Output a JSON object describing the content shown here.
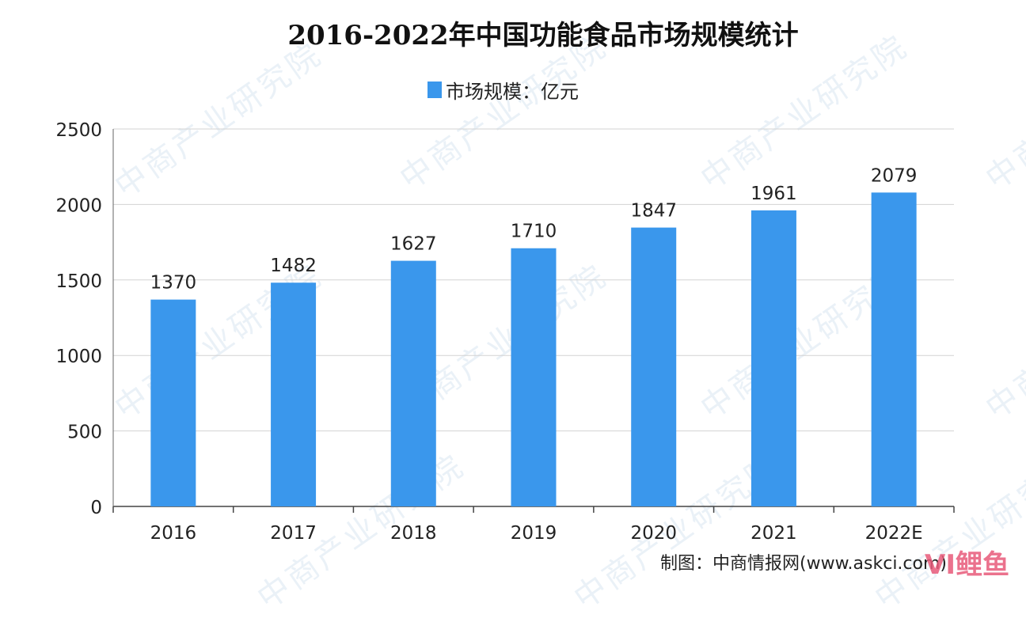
{
  "chart_data": {
    "type": "bar",
    "title": "2016-2022年中国功能食品市场规模统计",
    "categories": [
      "2016",
      "2017",
      "2018",
      "2019",
      "2020",
      "2021",
      "2022E"
    ],
    "series": [
      {
        "name": "市场规模：亿元",
        "values": [
          1370,
          1482,
          1627,
          1710,
          1847,
          1961,
          2079
        ]
      }
    ],
    "ylim": [
      0,
      2500
    ],
    "yticks": [
      0,
      500,
      1000,
      1500,
      2000,
      2500
    ],
    "grid": true,
    "legend": "top-center",
    "bar_color": "#3a97ec",
    "grid_color": "#d3d3d3"
  },
  "source": "制图：中商情报网(www.askci.com)",
  "watermark": "中商产业研究院",
  "logo_text": "VI鲤鱼"
}
